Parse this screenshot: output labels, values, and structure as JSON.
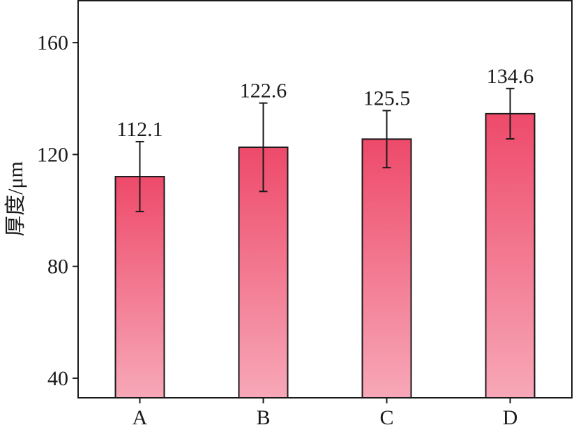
{
  "chart_data": {
    "type": "bar",
    "title": "",
    "xlabel": "",
    "ylabel": "厚度/μm",
    "categories": [
      "A",
      "B",
      "C",
      "D"
    ],
    "series": [
      {
        "values": [
          112.1,
          122.6,
          125.5,
          134.6
        ],
        "error": [
          12.5,
          15.8,
          10.2,
          9.0
        ]
      }
    ],
    "value_labels": [
      "112.1",
      "122.6",
      "125.5",
      "134.6"
    ],
    "ylim": [
      33,
      175
    ],
    "yticks": [
      40,
      80,
      120,
      160
    ],
    "ytick_labels": [
      "40",
      "80",
      "120",
      "160"
    ],
    "grid": false,
    "bar_color_top": "#ee4a6a",
    "bar_color_bottom": "#f7a8b8"
  }
}
